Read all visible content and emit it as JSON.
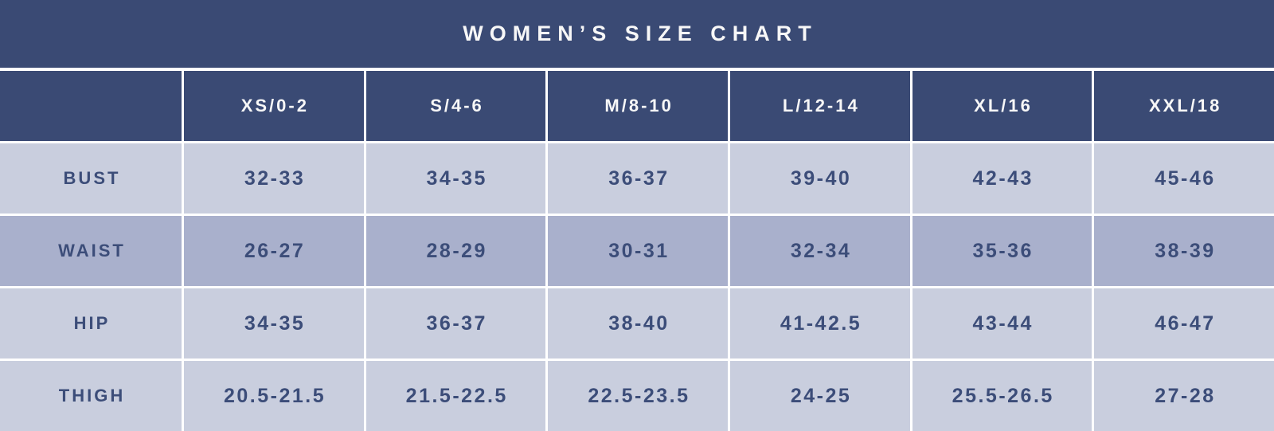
{
  "title": "WOMEN’S SIZE CHART",
  "colors": {
    "navy": "#3a4a74",
    "row_light": "#c9cede",
    "row_dark": "#a9b0cc",
    "cell_text": "#3c4d79",
    "header_text": "#f7f7f7",
    "grid_line": "#ffffff"
  },
  "chart_data": {
    "type": "table",
    "title": "WOMEN’S SIZE CHART",
    "columns": [
      "",
      "XS/0-2",
      "S/4-6",
      "M/8-10",
      "L/12-14",
      "XL/16",
      "XXL/18"
    ],
    "rows": [
      {
        "label": "BUST",
        "highlighted": false,
        "values": [
          "32-33",
          "34-35",
          "36-37",
          "39-40",
          "42-43",
          "45-46"
        ]
      },
      {
        "label": "WAIST",
        "highlighted": true,
        "values": [
          "26-27",
          "28-29",
          "30-31",
          "32-34",
          "35-36",
          "38-39"
        ]
      },
      {
        "label": "HIP",
        "highlighted": false,
        "values": [
          "34-35",
          "36-37",
          "38-40",
          "41-42.5",
          "43-44",
          "46-47"
        ]
      },
      {
        "label": "THIGH",
        "highlighted": false,
        "values": [
          "20.5-21.5",
          "21.5-22.5",
          "22.5-23.5",
          "24-25",
          "25.5-26.5",
          "27-28"
        ]
      }
    ]
  }
}
